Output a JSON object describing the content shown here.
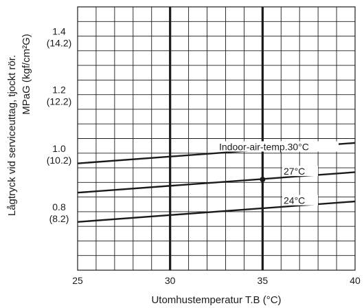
{
  "chart_data": {
    "type": "line",
    "xlabel": "Utomhustemperatur T.B (°C)",
    "ylabel_1": "Lågtryck vid serviceuttag, tjockt rör.",
    "ylabel_2": "MPaG (kgf/cm²G)",
    "xlim": [
      25,
      40
    ],
    "ylim": [
      0.6,
      1.5
    ],
    "x_ticks": [
      {
        "value": 25,
        "label": "25"
      },
      {
        "value": 30,
        "label": "30"
      },
      {
        "value": 35,
        "label": "35"
      },
      {
        "value": 40,
        "label": "40"
      }
    ],
    "y_ticks": [
      {
        "value": 1.4,
        "label": "1.4",
        "sublabel": "(14.2)"
      },
      {
        "value": 1.2,
        "label": "1.2",
        "sublabel": "(12.2)"
      },
      {
        "value": 1.0,
        "label": "1.0",
        "sublabel": "(10.2)"
      },
      {
        "value": 0.8,
        "label": "0.8",
        "sublabel": "(8.2)"
      }
    ],
    "grid": true,
    "series": [
      {
        "name": "Indoor-air-temp.30°C",
        "x": [
          25,
          40
        ],
        "y": [
          0.965,
          1.035
        ]
      },
      {
        "name": "27°C",
        "x": [
          25,
          40
        ],
        "y": [
          0.865,
          0.935
        ]
      },
      {
        "name": "24°C",
        "x": [
          25,
          40
        ],
        "y": [
          0.765,
          0.835
        ]
      }
    ],
    "marker_point": {
      "x": 35,
      "y": 0.91
    }
  }
}
